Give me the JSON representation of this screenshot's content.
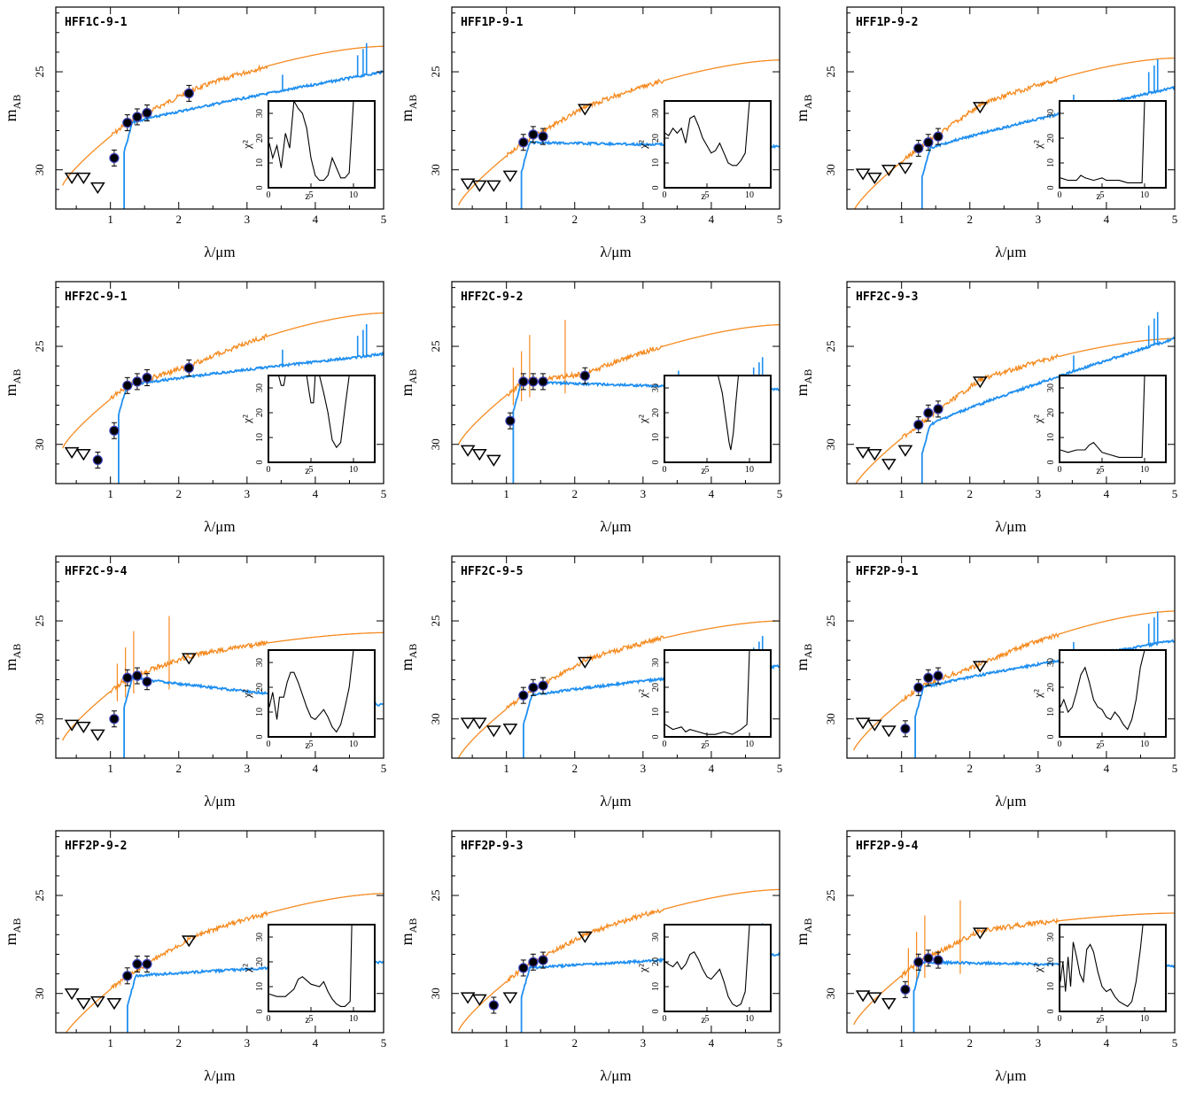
{
  "figure": {
    "common": {
      "xlabel": "λ/μm",
      "ylabel": "m",
      "ylabel_sub": "AB",
      "xlim": [
        0.2,
        5.0
      ],
      "ylim": [
        32.0,
        21.7
      ],
      "xticks": [
        1,
        2,
        3,
        4,
        5
      ],
      "yticks": [
        25,
        30
      ],
      "inset_xlabel": "z",
      "inset_ylabel": "χ²",
      "inset_xlim": [
        0,
        12.5
      ],
      "inset_ylim": [
        0,
        35
      ],
      "inset_xticks": [
        0,
        5,
        10
      ],
      "inset_yticks": [
        0,
        10,
        20,
        30
      ],
      "colors": {
        "hiz": "#1f8ff0",
        "lowz": "#f58a1f",
        "ink": "#000000",
        "point": "#000000",
        "point_ring": "#3b3fb8"
      }
    }
  },
  "chart_data": [
    {
      "type": "scatter",
      "title": "HFF1C-9-1",
      "x": [
        0.435,
        0.606,
        0.814,
        1.055,
        1.248,
        1.392,
        1.536,
        2.15
      ],
      "y": [
        30.4,
        30.4,
        30.9,
        29.4,
        27.6,
        27.3,
        27.1,
        26.1
      ],
      "upper_limit": [
        true,
        true,
        true,
        false,
        false,
        false,
        false,
        false
      ],
      "hiz_sed_end": 25.0,
      "lowz_sed_end": 23.7,
      "hiz_z": 9.0,
      "chi2_curve": [
        [
          0.1,
          18
        ],
        [
          0.5,
          12
        ],
        [
          1,
          17
        ],
        [
          1.5,
          8
        ],
        [
          2,
          22
        ],
        [
          2.5,
          16
        ],
        [
          3,
          35
        ],
        [
          3.5,
          32
        ],
        [
          4,
          30
        ],
        [
          4.5,
          24
        ],
        [
          5,
          12
        ],
        [
          5.5,
          5
        ],
        [
          6,
          3
        ],
        [
          6.5,
          3
        ],
        [
          7,
          5
        ],
        [
          7.5,
          12
        ],
        [
          8,
          8
        ],
        [
          8.5,
          4
        ],
        [
          9,
          4
        ],
        [
          9.5,
          6
        ],
        [
          10,
          35
        ]
      ]
    },
    {
      "type": "scatter",
      "title": "HFF1P-9-1",
      "x": [
        0.435,
        0.606,
        0.814,
        1.055,
        1.248,
        1.392,
        1.536,
        2.15
      ],
      "y": [
        30.7,
        30.8,
        30.8,
        30.3,
        28.6,
        28.2,
        28.3,
        26.9
      ],
      "upper_limit": [
        true,
        true,
        true,
        true,
        false,
        false,
        false,
        true
      ],
      "hiz_sed_end": 28.8,
      "lowz_sed_end": 24.4,
      "hiz_z": 9.2,
      "chi2_curve": [
        [
          0.1,
          22
        ],
        [
          0.5,
          21
        ],
        [
          1,
          24
        ],
        [
          1.5,
          22
        ],
        [
          2,
          24
        ],
        [
          2.5,
          18
        ],
        [
          3,
          28
        ],
        [
          3.5,
          29
        ],
        [
          4,
          25
        ],
        [
          4.5,
          20
        ],
        [
          5,
          17
        ],
        [
          5.5,
          14
        ],
        [
          6,
          15
        ],
        [
          6.5,
          18
        ],
        [
          7,
          14
        ],
        [
          7.5,
          10
        ],
        [
          8,
          9
        ],
        [
          8.5,
          9
        ],
        [
          9,
          11
        ],
        [
          9.5,
          14
        ],
        [
          10,
          35
        ]
      ]
    },
    {
      "type": "scatter",
      "title": "HFF1P-9-2",
      "x": [
        0.435,
        0.606,
        0.814,
        1.055,
        1.248,
        1.392,
        1.536,
        2.15
      ],
      "y": [
        30.2,
        30.4,
        30.0,
        29.9,
        28.9,
        28.6,
        28.3,
        26.8
      ],
      "upper_limit": [
        true,
        true,
        true,
        true,
        false,
        false,
        false,
        true
      ],
      "hiz_sed_end": 25.8,
      "lowz_sed_end": 24.3,
      "hiz_z": 10.0,
      "chi2_curve": [
        [
          0.1,
          4
        ],
        [
          1,
          3
        ],
        [
          2,
          3
        ],
        [
          2.5,
          5
        ],
        [
          3,
          4
        ],
        [
          4,
          3
        ],
        [
          5,
          4
        ],
        [
          5.5,
          3
        ],
        [
          6,
          3
        ],
        [
          7,
          3
        ],
        [
          8,
          2
        ],
        [
          9,
          2
        ],
        [
          9.7,
          2
        ],
        [
          10,
          35
        ]
      ]
    },
    {
      "type": "scatter",
      "title": "HFF2C-9-1",
      "x": [
        0.435,
        0.606,
        0.814,
        1.055,
        1.248,
        1.392,
        1.536,
        2.15
      ],
      "y": [
        30.4,
        30.5,
        30.8,
        29.3,
        27.0,
        26.8,
        26.6,
        26.1
      ],
      "upper_limit": [
        true,
        true,
        false,
        false,
        false,
        false,
        false,
        false
      ],
      "hiz_sed_end": 25.4,
      "lowz_sed_end": 23.3,
      "hiz_z": 8.2,
      "chi2_curve": [
        [
          1.2,
          35
        ],
        [
          1.5,
          31
        ],
        [
          1.8,
          31
        ],
        [
          2,
          35
        ],
        [
          4.5,
          35
        ],
        [
          4.8,
          28
        ],
        [
          5,
          24
        ],
        [
          5.3,
          24
        ],
        [
          5.5,
          35
        ],
        [
          6,
          35
        ],
        [
          6.5,
          28
        ],
        [
          7,
          20
        ],
        [
          7.5,
          9
        ],
        [
          8,
          6
        ],
        [
          8.5,
          8
        ],
        [
          9,
          22
        ],
        [
          9.5,
          35
        ]
      ]
    },
    {
      "type": "scatter",
      "title": "HFF2C-9-2",
      "x": [
        0.435,
        0.606,
        0.814,
        1.055,
        1.248,
        1.392,
        1.536,
        2.15
      ],
      "y": [
        30.3,
        30.5,
        30.8,
        28.8,
        26.8,
        26.8,
        26.8,
        26.5
      ],
      "upper_limit": [
        true,
        true,
        true,
        false,
        false,
        false,
        false,
        false
      ],
      "hiz_sed_end": 27.2,
      "lowz_sed_end": 23.9,
      "hiz_z": 8.0,
      "chi2_curve": [
        [
          6.3,
          35
        ],
        [
          6.8,
          28
        ],
        [
          7.2,
          18
        ],
        [
          7.6,
          8
        ],
        [
          7.8,
          5
        ],
        [
          8.1,
          12
        ],
        [
          8.4,
          24
        ],
        [
          8.7,
          35
        ]
      ]
    },
    {
      "type": "scatter",
      "title": "HFF2C-9-3",
      "x": [
        0.435,
        0.606,
        0.814,
        1.055,
        1.248,
        1.392,
        1.536,
        2.15
      ],
      "y": [
        30.4,
        30.5,
        31.0,
        30.3,
        29.0,
        28.4,
        28.2,
        26.8
      ],
      "upper_limit": [
        true,
        true,
        true,
        true,
        false,
        false,
        false,
        true
      ],
      "hiz_sed_end": 24.6,
      "lowz_sed_end": 24.6,
      "hiz_z": 10.0,
      "chi2_curve": [
        [
          0.1,
          5
        ],
        [
          1,
          4
        ],
        [
          2,
          5
        ],
        [
          3,
          5
        ],
        [
          3.5,
          7
        ],
        [
          4,
          8
        ],
        [
          4.5,
          6
        ],
        [
          5,
          4
        ],
        [
          6,
          3
        ],
        [
          7,
          2
        ],
        [
          8,
          2
        ],
        [
          9,
          2
        ],
        [
          9.7,
          2
        ],
        [
          10,
          35
        ]
      ]
    },
    {
      "type": "scatter",
      "title": "HFF2C-9-4",
      "x": [
        0.435,
        0.606,
        0.814,
        1.055,
        1.248,
        1.392,
        1.536,
        2.15
      ],
      "y": [
        30.3,
        30.4,
        30.8,
        30.0,
        27.9,
        27.8,
        28.1,
        26.9
      ],
      "upper_limit": [
        true,
        true,
        true,
        false,
        false,
        false,
        false,
        true
      ],
      "hiz_sed_end": 29.3,
      "lowz_sed_end": 25.6,
      "hiz_z": 9.0,
      "chi2_curve": [
        [
          0.1,
          12
        ],
        [
          0.5,
          18
        ],
        [
          1,
          7
        ],
        [
          1.3,
          16
        ],
        [
          1.8,
          16
        ],
        [
          2.2,
          22
        ],
        [
          2.6,
          26
        ],
        [
          3,
          26
        ],
        [
          3.5,
          22
        ],
        [
          4,
          17
        ],
        [
          4.5,
          12
        ],
        [
          5,
          8
        ],
        [
          5.5,
          7
        ],
        [
          6,
          9
        ],
        [
          6.5,
          11
        ],
        [
          7,
          8
        ],
        [
          7.5,
          4
        ],
        [
          8,
          2
        ],
        [
          8.5,
          5
        ],
        [
          9,
          12
        ],
        [
          9.5,
          20
        ],
        [
          10,
          35
        ]
      ]
    },
    {
      "type": "scatter",
      "title": "HFF2C-9-5",
      "x": [
        0.435,
        0.606,
        0.814,
        1.055,
        1.248,
        1.392,
        1.536,
        2.15
      ],
      "y": [
        30.2,
        30.2,
        30.6,
        30.5,
        28.8,
        28.4,
        28.3,
        27.1
      ],
      "upper_limit": [
        true,
        true,
        true,
        true,
        false,
        false,
        false,
        true
      ],
      "hiz_sed_end": 27.3,
      "lowz_sed_end": 25.0,
      "hiz_z": 9.5,
      "chi2_curve": [
        [
          0.1,
          5
        ],
        [
          1,
          3
        ],
        [
          2,
          4
        ],
        [
          2.5,
          2
        ],
        [
          3,
          3
        ],
        [
          4,
          2
        ],
        [
          5,
          1
        ],
        [
          6,
          1
        ],
        [
          7,
          2
        ],
        [
          8,
          1
        ],
        [
          9,
          3
        ],
        [
          9.7,
          5
        ],
        [
          10,
          35
        ]
      ]
    },
    {
      "type": "scatter",
      "title": "HFF2P-9-1",
      "x": [
        0.435,
        0.606,
        0.814,
        1.055,
        1.248,
        1.392,
        1.536,
        2.15
      ],
      "y": [
        30.2,
        30.3,
        30.6,
        30.5,
        28.4,
        27.9,
        27.8,
        27.3
      ],
      "upper_limit": [
        true,
        true,
        true,
        false,
        false,
        false,
        false,
        true
      ],
      "hiz_sed_end": 26.0,
      "lowz_sed_end": 24.5,
      "hiz_z": 9.0,
      "chi2_curve": [
        [
          0.1,
          12
        ],
        [
          0.5,
          15
        ],
        [
          1,
          10
        ],
        [
          1.5,
          12
        ],
        [
          2,
          18
        ],
        [
          2.5,
          25
        ],
        [
          3,
          28
        ],
        [
          3.5,
          22
        ],
        [
          4,
          15
        ],
        [
          4.5,
          12
        ],
        [
          5,
          11
        ],
        [
          5.5,
          8
        ],
        [
          6,
          7
        ],
        [
          6.5,
          10
        ],
        [
          7,
          8
        ],
        [
          7.5,
          5
        ],
        [
          8,
          3
        ],
        [
          8.5,
          7
        ],
        [
          9,
          15
        ],
        [
          9.5,
          28
        ],
        [
          10,
          35
        ]
      ]
    },
    {
      "type": "scatter",
      "title": "HFF2P-9-2",
      "x": [
        0.435,
        0.606,
        0.814,
        1.055,
        1.248,
        1.392,
        1.536,
        2.15
      ],
      "y": [
        30.0,
        30.5,
        30.4,
        30.5,
        29.1,
        28.5,
        28.5,
        27.3
      ],
      "upper_limit": [
        true,
        true,
        true,
        true,
        false,
        false,
        false,
        true
      ],
      "hiz_sed_end": 28.4,
      "lowz_sed_end": 24.9,
      "hiz_z": 9.5,
      "chi2_curve": [
        [
          0.1,
          7
        ],
        [
          1,
          6
        ],
        [
          2,
          6
        ],
        [
          3,
          9
        ],
        [
          3.5,
          13
        ],
        [
          4,
          14
        ],
        [
          5,
          11
        ],
        [
          6,
          10
        ],
        [
          6.5,
          12
        ],
        [
          7,
          8
        ],
        [
          7.5,
          5
        ],
        [
          8,
          3
        ],
        [
          8.5,
          2
        ],
        [
          9,
          2
        ],
        [
          9.6,
          4
        ],
        [
          9.8,
          35
        ]
      ]
    },
    {
      "type": "scatter",
      "title": "HFF2P-9-3",
      "x": [
        0.435,
        0.606,
        0.814,
        1.055,
        1.248,
        1.392,
        1.536,
        2.15
      ],
      "y": [
        30.2,
        30.3,
        30.6,
        30.2,
        28.7,
        28.4,
        28.3,
        27.1
      ],
      "upper_limit": [
        true,
        true,
        false,
        true,
        false,
        false,
        false,
        true
      ],
      "hiz_sed_end": 28.0,
      "lowz_sed_end": 24.7,
      "hiz_z": 9.2,
      "chi2_curve": [
        [
          0.1,
          20
        ],
        [
          0.5,
          19
        ],
        [
          1,
          18
        ],
        [
          1.5,
          20
        ],
        [
          2,
          17
        ],
        [
          2.5,
          19
        ],
        [
          3,
          23
        ],
        [
          3.5,
          24
        ],
        [
          4,
          21
        ],
        [
          4.5,
          17
        ],
        [
          5,
          14
        ],
        [
          5.5,
          13
        ],
        [
          6,
          15
        ],
        [
          6.5,
          17
        ],
        [
          7,
          12
        ],
        [
          7.5,
          6
        ],
        [
          8,
          3
        ],
        [
          8.5,
          2
        ],
        [
          9,
          3
        ],
        [
          9.5,
          8
        ],
        [
          10,
          35
        ]
      ]
    },
    {
      "type": "scatter",
      "title": "HFF2P-9-4",
      "x": [
        0.435,
        0.606,
        0.814,
        1.055,
        1.248,
        1.392,
        1.536,
        2.15
      ],
      "y": [
        30.1,
        30.2,
        30.5,
        29.8,
        28.4,
        28.2,
        28.3,
        26.9
      ],
      "upper_limit": [
        true,
        true,
        true,
        false,
        false,
        false,
        false,
        true
      ],
      "hiz_sed_end": 28.6,
      "lowz_sed_end": 25.9,
      "hiz_z": 8.8,
      "chi2_curve": [
        [
          0.1,
          12
        ],
        [
          0.4,
          20
        ],
        [
          0.7,
          8
        ],
        [
          1,
          22
        ],
        [
          1.3,
          10
        ],
        [
          1.6,
          28
        ],
        [
          2,
          22
        ],
        [
          2.4,
          15
        ],
        [
          2.8,
          12
        ],
        [
          3.2,
          25
        ],
        [
          3.6,
          27
        ],
        [
          4,
          24
        ],
        [
          4.5,
          16
        ],
        [
          5,
          10
        ],
        [
          5.5,
          8
        ],
        [
          6,
          9
        ],
        [
          6.5,
          6
        ],
        [
          7,
          4
        ],
        [
          7.5,
          3
        ],
        [
          8,
          2
        ],
        [
          8.5,
          4
        ],
        [
          9,
          12
        ],
        [
          9.5,
          25
        ],
        [
          9.8,
          35
        ]
      ]
    }
  ]
}
